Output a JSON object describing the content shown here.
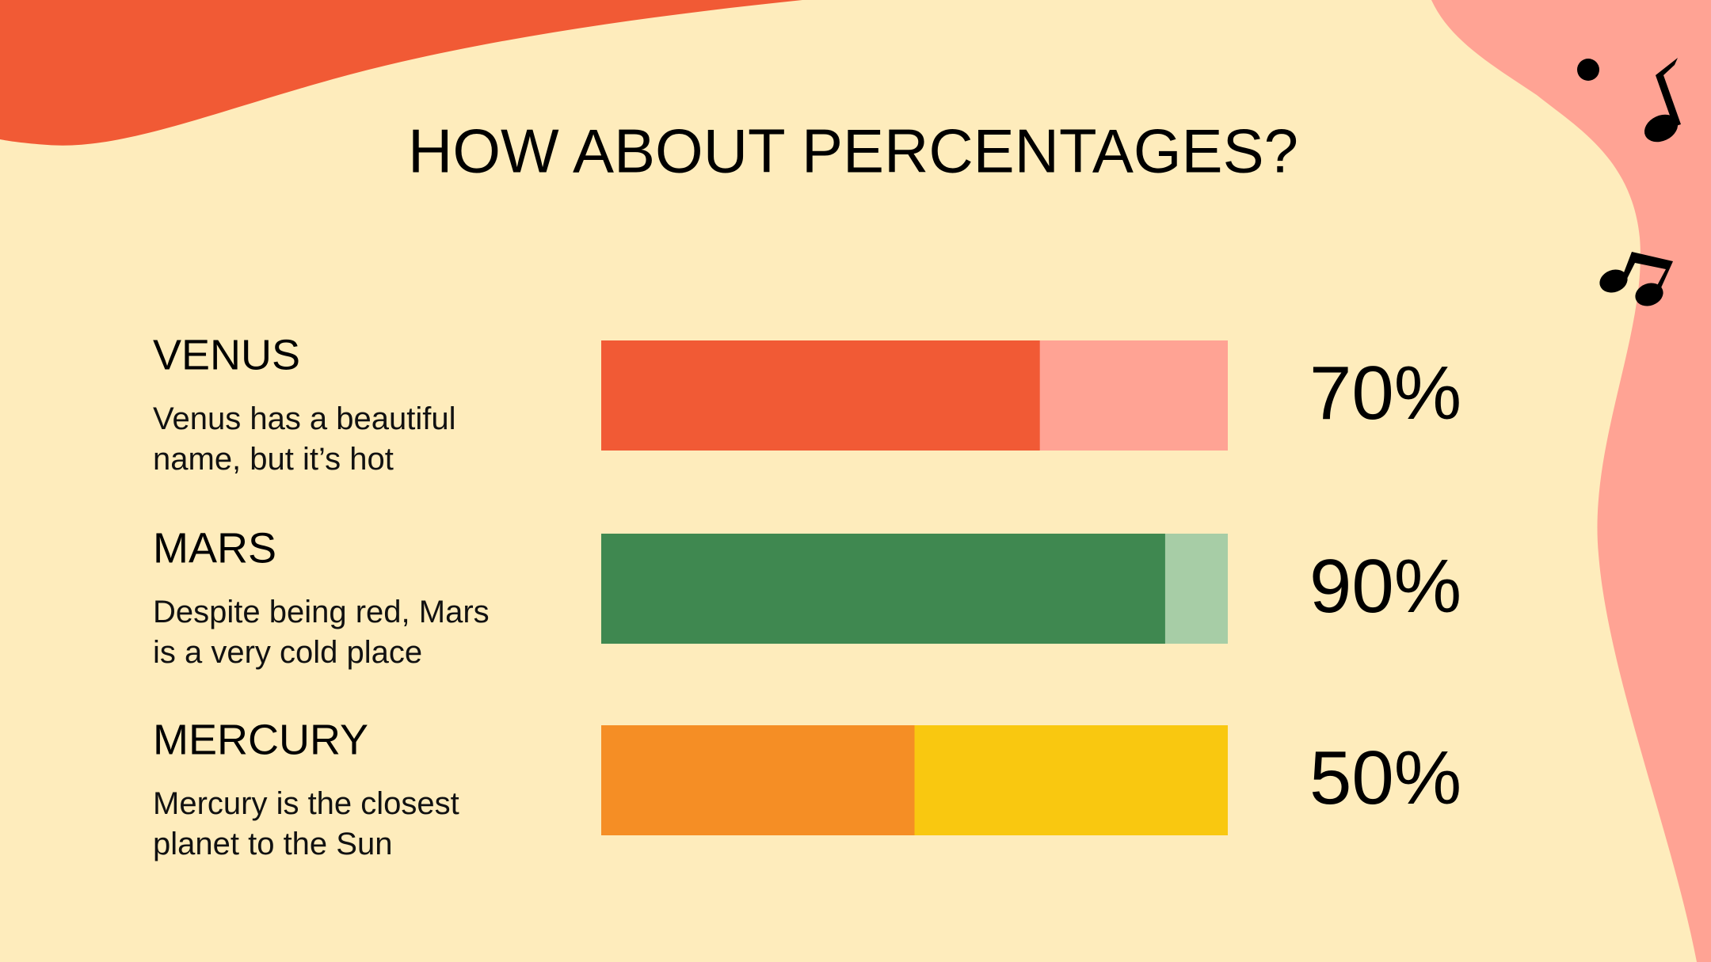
{
  "chart_data": {
    "type": "progress",
    "title": "HOW ABOUT PERCENTAGES?",
    "categories": [
      "VENUS",
      "MARS",
      "MERCURY"
    ],
    "descriptions": [
      "Venus has a beautiful name, but it’s hot",
      "Despite being red, Mars is a very cold place",
      "Mercury is the closest planet to the Sun"
    ],
    "values": [
      70,
      90,
      50
    ],
    "value_labels": [
      "70%",
      "90%",
      "50%"
    ],
    "colors": [
      "#f15a35",
      "#3f8850",
      "#f58e25"
    ],
    "track_colors": [
      "#ffa394",
      "#a7cda6",
      "#f9c810"
    ],
    "xlim": [
      0,
      100
    ]
  }
}
